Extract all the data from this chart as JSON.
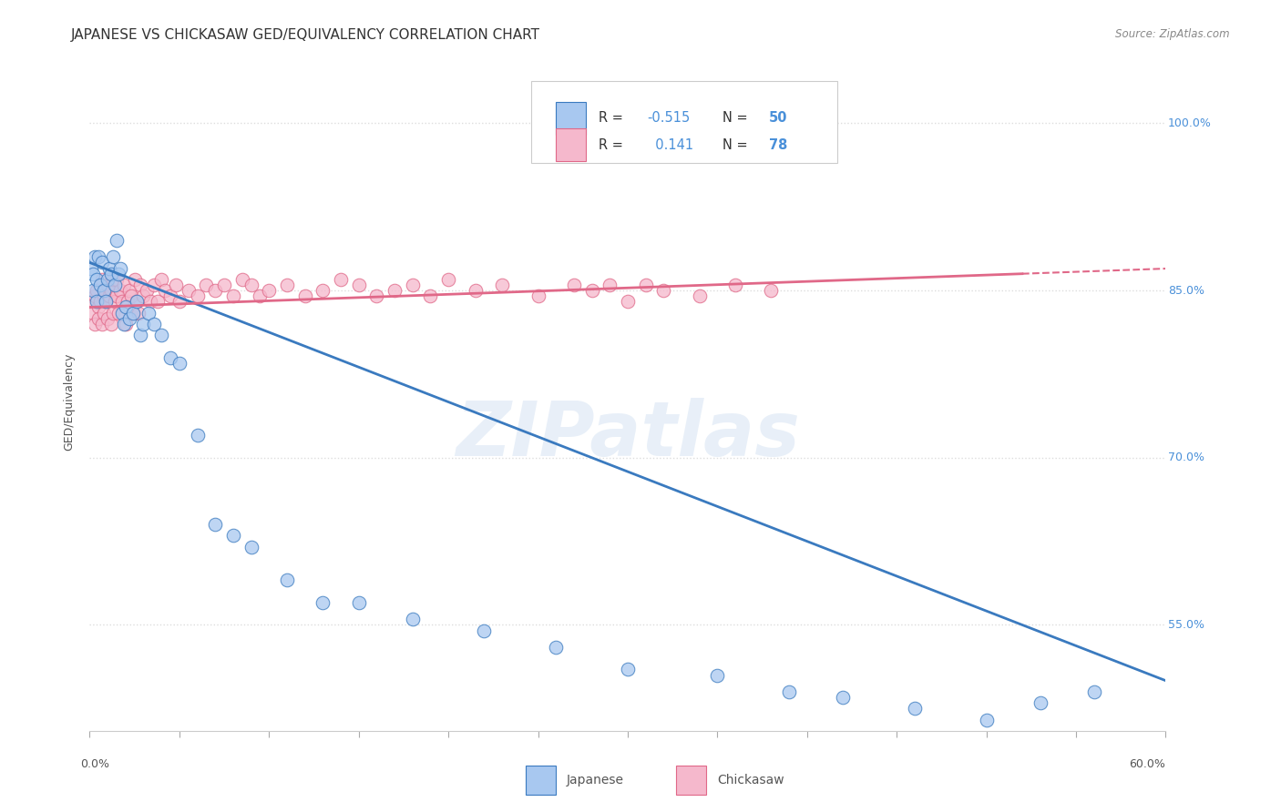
{
  "title": "JAPANESE VS CHICKASAW GED/EQUIVALENCY CORRELATION CHART",
  "source": "Source: ZipAtlas.com",
  "ylabel": "GED/Equivalency",
  "ytick_labels": [
    "100.0%",
    "85.0%",
    "70.0%",
    "55.0%"
  ],
  "ytick_values": [
    1.0,
    0.85,
    0.7,
    0.55
  ],
  "xlim": [
    0.0,
    0.6
  ],
  "ylim": [
    0.455,
    1.045
  ],
  "r_japanese": -0.515,
  "n_japanese": 50,
  "r_chickasaw": 0.141,
  "n_chickasaw": 78,
  "color_japanese": "#a8c8f0",
  "color_chickasaw": "#f5b8cc",
  "color_japanese_line": "#3a7abf",
  "color_chickasaw_line": "#e06888",
  "watermark": "ZIPatlas",
  "japanese_x": [
    0.001,
    0.002,
    0.002,
    0.003,
    0.004,
    0.004,
    0.005,
    0.006,
    0.007,
    0.008,
    0.009,
    0.01,
    0.011,
    0.012,
    0.013,
    0.014,
    0.015,
    0.016,
    0.017,
    0.018,
    0.019,
    0.02,
    0.022,
    0.024,
    0.026,
    0.028,
    0.03,
    0.033,
    0.036,
    0.04,
    0.045,
    0.05,
    0.06,
    0.07,
    0.08,
    0.09,
    0.11,
    0.13,
    0.15,
    0.18,
    0.22,
    0.26,
    0.3,
    0.35,
    0.39,
    0.42,
    0.46,
    0.5,
    0.53,
    0.56
  ],
  "japanese_y": [
    0.87,
    0.865,
    0.85,
    0.88,
    0.86,
    0.84,
    0.88,
    0.855,
    0.875,
    0.85,
    0.84,
    0.86,
    0.87,
    0.865,
    0.88,
    0.855,
    0.895,
    0.865,
    0.87,
    0.83,
    0.82,
    0.835,
    0.825,
    0.83,
    0.84,
    0.81,
    0.82,
    0.83,
    0.82,
    0.81,
    0.79,
    0.785,
    0.72,
    0.64,
    0.63,
    0.62,
    0.59,
    0.57,
    0.57,
    0.555,
    0.545,
    0.53,
    0.51,
    0.505,
    0.49,
    0.485,
    0.475,
    0.465,
    0.48,
    0.49
  ],
  "chickasaw_x": [
    0.001,
    0.002,
    0.003,
    0.003,
    0.004,
    0.005,
    0.005,
    0.006,
    0.007,
    0.007,
    0.008,
    0.008,
    0.009,
    0.01,
    0.01,
    0.011,
    0.012,
    0.012,
    0.013,
    0.013,
    0.014,
    0.015,
    0.015,
    0.016,
    0.017,
    0.018,
    0.019,
    0.02,
    0.021,
    0.022,
    0.023,
    0.024,
    0.025,
    0.026,
    0.027,
    0.028,
    0.03,
    0.032,
    0.034,
    0.036,
    0.038,
    0.04,
    0.042,
    0.045,
    0.048,
    0.05,
    0.055,
    0.06,
    0.065,
    0.07,
    0.075,
    0.08,
    0.085,
    0.09,
    0.095,
    0.1,
    0.11,
    0.12,
    0.13,
    0.14,
    0.15,
    0.16,
    0.17,
    0.18,
    0.19,
    0.2,
    0.215,
    0.23,
    0.25,
    0.27,
    0.28,
    0.29,
    0.3,
    0.31,
    0.32,
    0.34,
    0.36,
    0.38
  ],
  "chickasaw_y": [
    0.84,
    0.83,
    0.845,
    0.82,
    0.85,
    0.835,
    0.825,
    0.84,
    0.86,
    0.82,
    0.845,
    0.83,
    0.84,
    0.855,
    0.825,
    0.845,
    0.85,
    0.82,
    0.83,
    0.86,
    0.84,
    0.845,
    0.86,
    0.83,
    0.85,
    0.84,
    0.855,
    0.82,
    0.84,
    0.85,
    0.845,
    0.83,
    0.86,
    0.84,
    0.83,
    0.855,
    0.845,
    0.85,
    0.84,
    0.855,
    0.84,
    0.86,
    0.85,
    0.845,
    0.855,
    0.84,
    0.85,
    0.845,
    0.855,
    0.85,
    0.855,
    0.845,
    0.86,
    0.855,
    0.845,
    0.85,
    0.855,
    0.845,
    0.85,
    0.86,
    0.855,
    0.845,
    0.85,
    0.855,
    0.845,
    0.86,
    0.85,
    0.855,
    0.845,
    0.855,
    0.85,
    0.855,
    0.84,
    0.855,
    0.85,
    0.845,
    0.855,
    0.85
  ],
  "bg_color": "#ffffff",
  "grid_color": "#dddddd"
}
